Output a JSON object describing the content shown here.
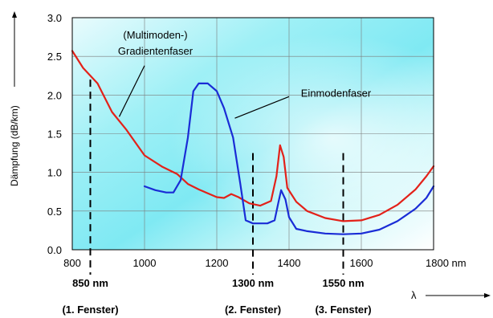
{
  "chart_data": {
    "type": "line",
    "xlabel": "λ",
    "ylabel": "Dämpfung (dB/km)",
    "xlim": [
      800,
      1800
    ],
    "ylim": [
      0,
      3
    ],
    "x_unit": "nm",
    "x_ticks": [
      "800",
      "1000",
      "1200",
      "1400",
      "1600",
      "1800"
    ],
    "y_ticks": [
      "0.0",
      "0.5",
      "1.0",
      "1.5",
      "2.0",
      "2.5",
      "3.0"
    ],
    "grid": true,
    "annotations": [
      {
        "text": "(Multimoden-)",
        "x": 1030,
        "y": 2.73
      },
      {
        "text": "Gradientenfaser",
        "x": 1030,
        "y": 2.52
      },
      {
        "text": "Einmodenfaser",
        "x": 1530,
        "y": 1.98
      }
    ],
    "series": [
      {
        "name": "Gradientenfaser",
        "color": "#e32119",
        "points": [
          [
            800,
            2.57
          ],
          [
            830,
            2.35
          ],
          [
            870,
            2.15
          ],
          [
            910,
            1.78
          ],
          [
            950,
            1.55
          ],
          [
            1000,
            1.22
          ],
          [
            1050,
            1.07
          ],
          [
            1090,
            0.98
          ],
          [
            1120,
            0.85
          ],
          [
            1150,
            0.78
          ],
          [
            1200,
            0.68
          ],
          [
            1220,
            0.67
          ],
          [
            1240,
            0.72
          ],
          [
            1260,
            0.68
          ],
          [
            1290,
            0.6
          ],
          [
            1320,
            0.57
          ],
          [
            1350,
            0.63
          ],
          [
            1365,
            0.95
          ],
          [
            1375,
            1.35
          ],
          [
            1385,
            1.2
          ],
          [
            1395,
            0.8
          ],
          [
            1420,
            0.62
          ],
          [
            1450,
            0.5
          ],
          [
            1500,
            0.41
          ],
          [
            1550,
            0.37
          ],
          [
            1600,
            0.38
          ],
          [
            1650,
            0.45
          ],
          [
            1700,
            0.58
          ],
          [
            1750,
            0.78
          ],
          [
            1780,
            0.95
          ],
          [
            1800,
            1.08
          ]
        ]
      },
      {
        "name": "Einmodenfaser",
        "color": "#1a2cd6",
        "points": [
          [
            1000,
            0.82
          ],
          [
            1030,
            0.77
          ],
          [
            1060,
            0.74
          ],
          [
            1080,
            0.74
          ],
          [
            1100,
            0.9
          ],
          [
            1120,
            1.45
          ],
          [
            1135,
            2.05
          ],
          [
            1150,
            2.15
          ],
          [
            1175,
            2.15
          ],
          [
            1200,
            2.05
          ],
          [
            1220,
            1.83
          ],
          [
            1245,
            1.45
          ],
          [
            1265,
            0.85
          ],
          [
            1280,
            0.38
          ],
          [
            1300,
            0.34
          ],
          [
            1340,
            0.34
          ],
          [
            1360,
            0.38
          ],
          [
            1370,
            0.6
          ],
          [
            1378,
            0.77
          ],
          [
            1390,
            0.65
          ],
          [
            1400,
            0.42
          ],
          [
            1420,
            0.27
          ],
          [
            1450,
            0.24
          ],
          [
            1500,
            0.21
          ],
          [
            1550,
            0.2
          ],
          [
            1600,
            0.21
          ],
          [
            1650,
            0.26
          ],
          [
            1700,
            0.37
          ],
          [
            1750,
            0.53
          ],
          [
            1780,
            0.67
          ],
          [
            1800,
            0.82
          ]
        ]
      }
    ],
    "windows": [
      {
        "x": 850,
        "label": "850 nm",
        "sub": "(1. Fenster)"
      },
      {
        "x": 1300,
        "label": "1300 nm",
        "sub": "(2. Fenster)"
      },
      {
        "x": 1550,
        "label": "1550 nm",
        "sub": "(3. Fenster)"
      }
    ]
  }
}
